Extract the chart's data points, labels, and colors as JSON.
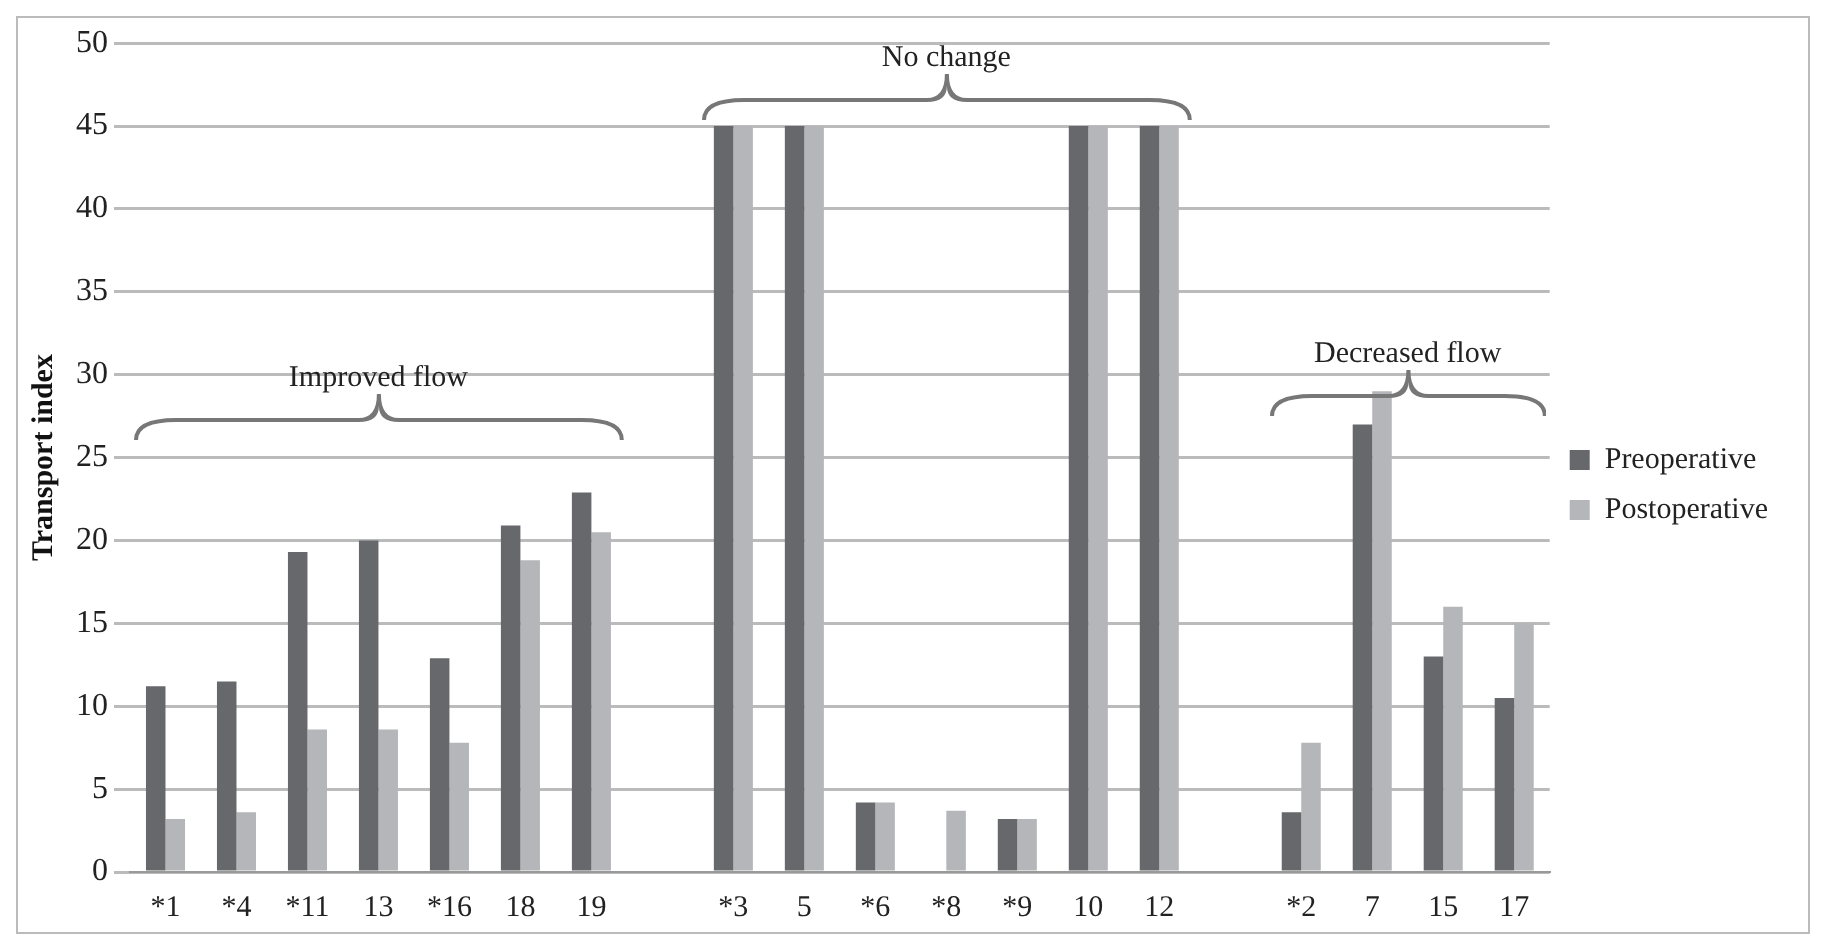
{
  "chart_data": {
    "type": "bar",
    "ylabel": "Transport index",
    "categories": [
      "*1",
      "*4",
      "*11",
      "13",
      "*16",
      "18",
      "19",
      null,
      "*3",
      "5",
      "*6",
      "*8",
      "*9",
      "10",
      "12",
      null,
      "*2",
      "7",
      "15",
      "17"
    ],
    "series": [
      {
        "name": "Preoperative",
        "color": "#66686b",
        "values": [
          11.2,
          11.5,
          19.3,
          20,
          12.9,
          20.9,
          22.9,
          null,
          45,
          45,
          4.2,
          null,
          3.2,
          45,
          45,
          null,
          3.6,
          27,
          13,
          10.5
        ]
      },
      {
        "name": "Postoperative",
        "color": "#b4b6b9",
        "values": [
          3.2,
          3.6,
          8.6,
          8.6,
          7.8,
          18.8,
          20.5,
          null,
          45,
          45,
          4.2,
          3.7,
          3.2,
          45,
          45,
          null,
          7.8,
          29,
          16,
          15
        ]
      }
    ],
    "ylim": [
      0,
      50
    ],
    "yticks": [
      0,
      5,
      10,
      15,
      20,
      25,
      30,
      35,
      40,
      45,
      50
    ],
    "grid": "y",
    "legend": "right",
    "annotations": [
      "Improved flow",
      "No change",
      "Decreased flow"
    ]
  }
}
